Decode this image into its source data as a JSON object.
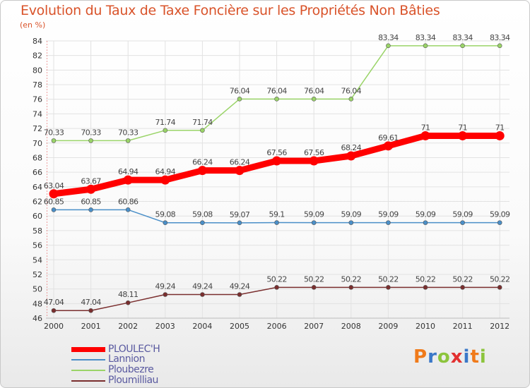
{
  "title": "Evolution du Taux de Taxe Foncière sur les Propriétés Non Bâties",
  "unit_label": "(en %)",
  "logo": {
    "text": "Proxiti",
    "letters": [
      "P",
      "r",
      "o",
      "x",
      "i",
      "t",
      "i"
    ],
    "colors": [
      "#f07a1a",
      "#3a78c8",
      "#8cc43c",
      "#e23030",
      "#3a78c8",
      "#f07a1a",
      "#8cc43c"
    ]
  },
  "chart_data": {
    "type": "line",
    "title": "Evolution du Taux de Taxe Foncière sur les Propriétés Non Bâties",
    "xlabel": "",
    "ylabel": "(en %)",
    "x": [
      "2000",
      "2001",
      "2002",
      "2003",
      "2004",
      "2005",
      "2006",
      "2007",
      "2008",
      "2009",
      "2010",
      "2011",
      "2012"
    ],
    "ylim": [
      46,
      84
    ],
    "yticks": [
      46,
      48,
      50,
      52,
      54,
      56,
      58,
      60,
      62,
      64,
      66,
      68,
      70,
      72,
      74,
      76,
      78,
      80,
      82,
      84
    ],
    "grid": true,
    "legend_position": "bottom-left",
    "series": [
      {
        "name": "PLOULEC'H",
        "color": "#ff0000",
        "values": [
          63.04,
          63.67,
          64.94,
          64.94,
          66.24,
          66.24,
          67.56,
          67.56,
          68.24,
          69.61,
          71,
          71,
          71
        ],
        "labels": [
          "63.04",
          "63.67",
          "64.94",
          "64.94",
          "66.24",
          "66.24",
          "67.56",
          "67.56",
          "68.24",
          "69.61",
          "71",
          "71",
          "71"
        ]
      },
      {
        "name": "Lannion",
        "color": "#4a8fc8",
        "values": [
          60.85,
          60.85,
          60.86,
          59.08,
          59.08,
          59.07,
          59.1,
          59.09,
          59.09,
          59.09,
          59.09,
          59.09,
          59.09
        ],
        "labels": [
          "60.85",
          "60.85",
          "60.86",
          "59.08",
          "59.08",
          "59.07",
          "59.1",
          "59.09",
          "59.09",
          "59.09",
          "59.09",
          "59.09",
          "59.09"
        ]
      },
      {
        "name": "Ploubezre",
        "color": "#9ad468",
        "values": [
          70.33,
          70.33,
          70.33,
          71.74,
          71.74,
          76.04,
          76.04,
          76.04,
          76.04,
          83.34,
          83.34,
          83.34,
          83.34
        ],
        "labels": [
          "70.33",
          "70.33",
          "70.33",
          "71.74",
          "71.74",
          "76.04",
          "76.04",
          "76.04",
          "76.04",
          "83.34",
          "83.34",
          "83.34",
          "83.34"
        ]
      },
      {
        "name": "Ploumilliau",
        "color": "#7a2e2e",
        "values": [
          47.04,
          47.04,
          48.11,
          49.24,
          49.24,
          49.24,
          50.22,
          50.22,
          50.22,
          50.22,
          50.22,
          50.22,
          50.22
        ],
        "labels": [
          "47.04",
          "47.04",
          "48.11",
          "49.24",
          "49.24",
          "49.24",
          "50.22",
          "50.22",
          "50.22",
          "50.22",
          "50.22",
          "50.22",
          "50.22"
        ]
      }
    ]
  }
}
